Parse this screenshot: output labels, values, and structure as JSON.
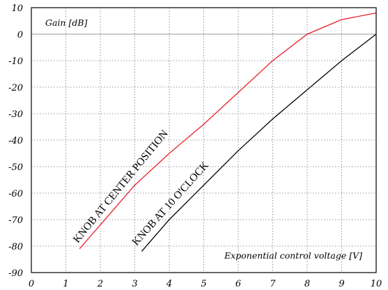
{
  "chart_data": {
    "type": "line",
    "title": "",
    "xlabel": "Exponential control voltage [V]",
    "ylabel": "Gain [dB]",
    "xlim": [
      0,
      10
    ],
    "ylim": [
      -90,
      10
    ],
    "x_ticks": [
      "0",
      "1",
      "2",
      "3",
      "4",
      "5",
      "6",
      "7",
      "8",
      "9",
      "10"
    ],
    "y_ticks": [
      "10",
      "0",
      "-10",
      "-20",
      "-30",
      "-40",
      "-50",
      "-60",
      "-70",
      "-80",
      "-90"
    ],
    "grid": true,
    "series": [
      {
        "name": "KNOB AT CENTER POSITION",
        "color": "#e8202a",
        "points": [
          [
            1.4,
            -81
          ],
          [
            2,
            -72
          ],
          [
            3,
            -57
          ],
          [
            4,
            -45
          ],
          [
            5,
            -34
          ],
          [
            6,
            -22
          ],
          [
            7,
            -10
          ],
          [
            8,
            0
          ],
          [
            9,
            5.5
          ],
          [
            10,
            8
          ]
        ]
      },
      {
        "name": "KNOB AT 10 O'CLOCK",
        "color": "#000000",
        "points": [
          [
            3.2,
            -82
          ],
          [
            4,
            -70
          ],
          [
            5,
            -57
          ],
          [
            6,
            -44
          ],
          [
            7,
            -32
          ],
          [
            8,
            -21
          ],
          [
            9,
            -10
          ],
          [
            10,
            0
          ]
        ]
      }
    ],
    "annotations": [
      {
        "text": "KNOB AT CENTER POSITION",
        "x": 1.35,
        "y": -79,
        "angle_deg": -50.5
      },
      {
        "text": "KNOB AT 10 O'CLOCK",
        "x": 3.05,
        "y": -80,
        "angle_deg": -48
      }
    ]
  }
}
